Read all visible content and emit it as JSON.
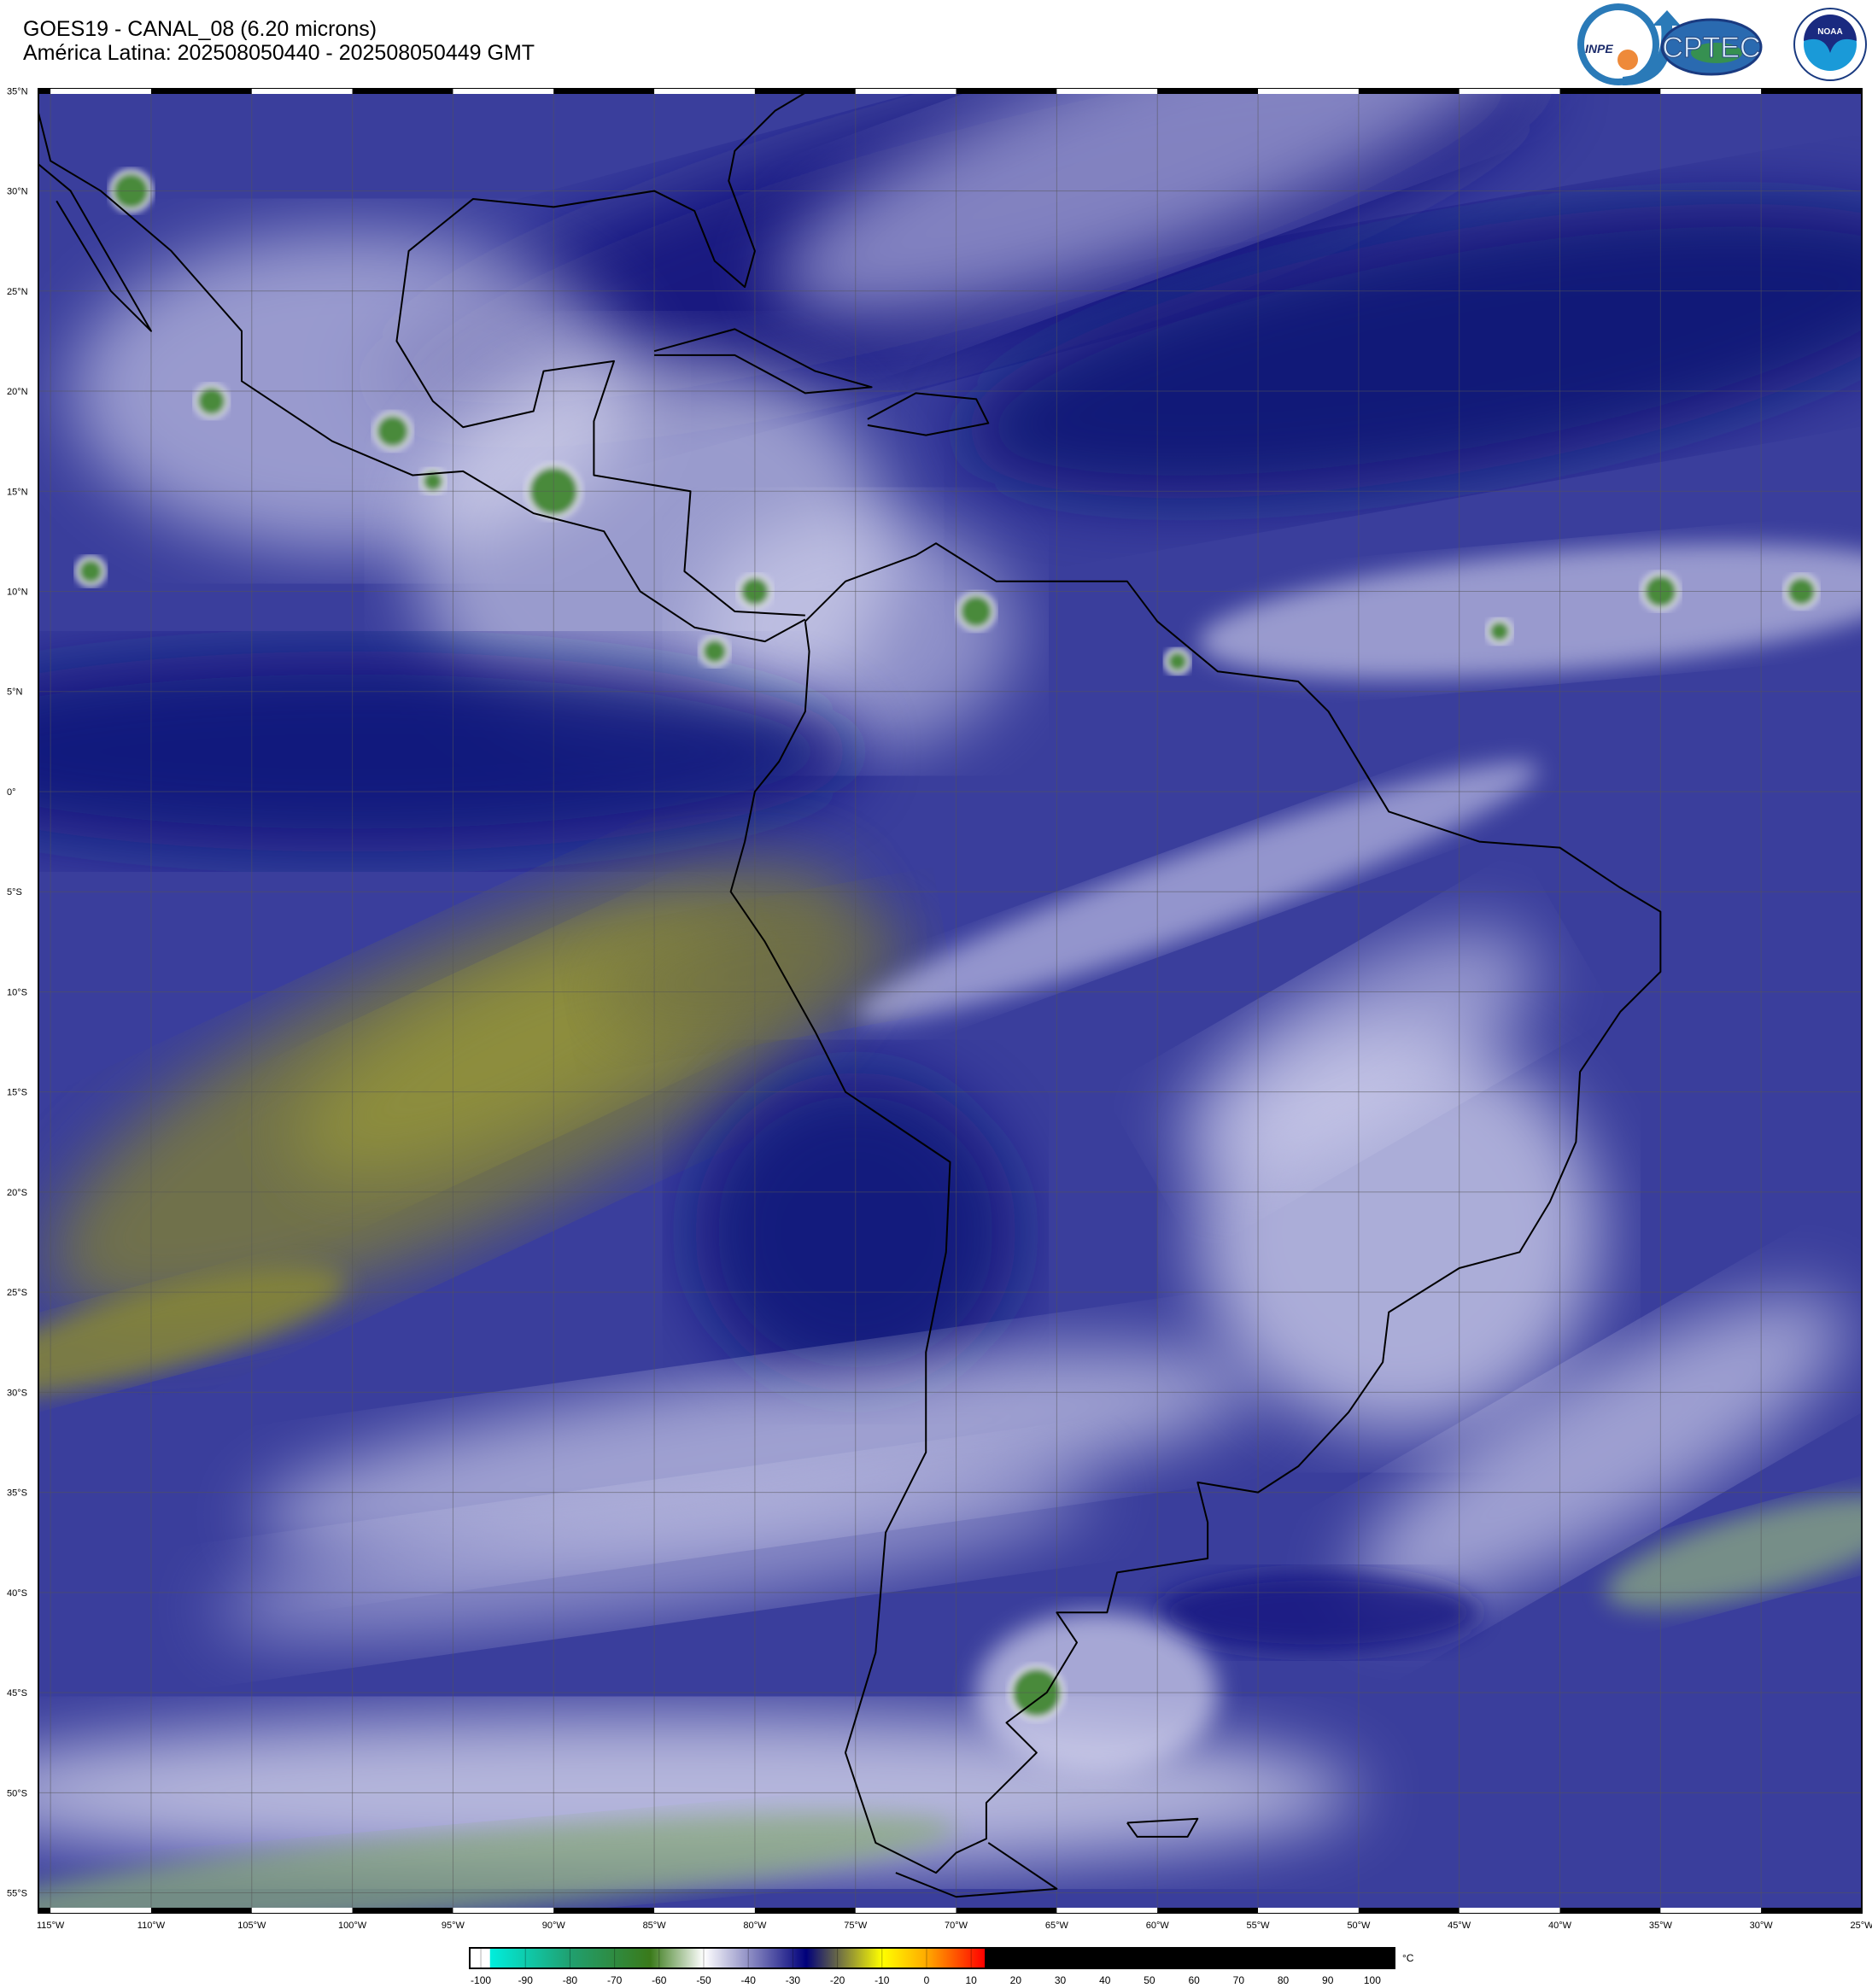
{
  "header": {
    "title_line1": "GOES19 - CANAL_08 (6.20 microns)",
    "title_line2": "América Latina: 202508050440 - 202508050449 GMT"
  },
  "logos": {
    "inpe": "INPE",
    "cptec": "CPTEC",
    "noaa": "NOAA"
  },
  "map": {
    "lat_labels": [
      "35°N",
      "30°N",
      "25°N",
      "20°N",
      "15°N",
      "10°N",
      "5°N",
      "0°",
      "5°S",
      "10°S",
      "15°S",
      "20°S",
      "25°S",
      "30°S",
      "35°S",
      "40°S",
      "45°S",
      "50°S",
      "55°S"
    ],
    "lon_labels": [
      "115°W",
      "110°W",
      "105°W",
      "100°W",
      "95°W",
      "90°W",
      "85°W",
      "80°W",
      "75°W",
      "70°W",
      "65°W",
      "60°W",
      "55°W",
      "50°W",
      "45°W",
      "40°W",
      "35°W",
      "30°W",
      "25°W"
    ],
    "lat_range": [
      -56,
      35.1
    ],
    "lon_range": [
      -115.6,
      -25
    ],
    "grid_step_deg": 5
  },
  "colorbar": {
    "unit": "°C",
    "labels": [
      "-100",
      "-90",
      "-80",
      "-70",
      "-60",
      "-50",
      "-40",
      "-30",
      "-20",
      "-10",
      "0",
      "10",
      "20",
      "30",
      "40",
      "50",
      "60",
      "70",
      "80",
      "90",
      "100"
    ],
    "stops": [
      {
        "value": -100,
        "color": "#ffffff"
      },
      {
        "value": -98,
        "color": "#ffffff"
      },
      {
        "value": -97.9,
        "color": "#00eedd"
      },
      {
        "value": -80,
        "color": "#20a070"
      },
      {
        "value": -62,
        "color": "#3a7a1a"
      },
      {
        "value": -50,
        "color": "#ffffff"
      },
      {
        "value": -27,
        "color": "#00007a"
      },
      {
        "value": -10,
        "color": "#ffff00"
      },
      {
        "value": 0,
        "color": "#ffaa00"
      },
      {
        "value": 13,
        "color": "#ff0000"
      },
      {
        "value": 13.1,
        "color": "#000000"
      },
      {
        "value": 105,
        "color": "#000000"
      }
    ]
  }
}
